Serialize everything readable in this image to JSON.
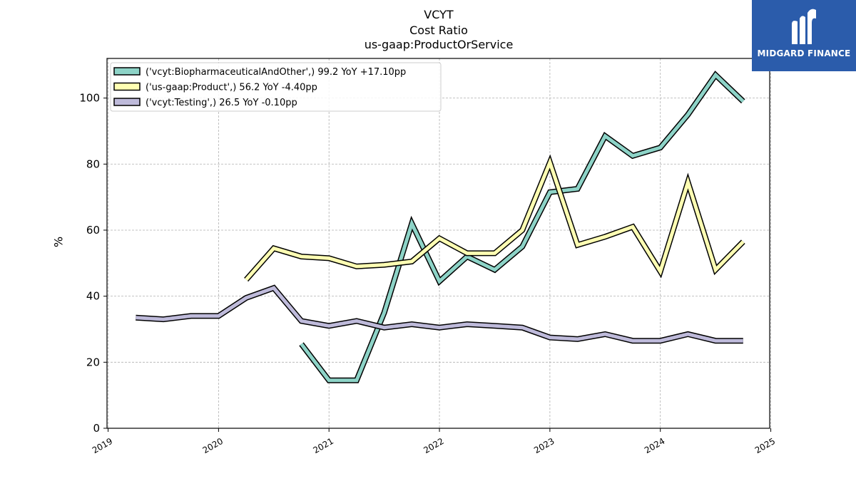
{
  "titles": {
    "line1": "VCYT",
    "line2": "Cost Ratio",
    "line3": "us-gaap:ProductOrService"
  },
  "logo": {
    "text": "MIDGARD FINANCE",
    "background": "#2b5cab"
  },
  "chart_data": {
    "type": "line",
    "title": "VCYT\nCost Ratio\nus-gaap:ProductOrService",
    "xlabel": "",
    "ylabel": "%",
    "xlim": [
      2018.99,
      2024.99
    ],
    "ylim": [
      0,
      112
    ],
    "x_ticks": [
      "2019",
      "2020",
      "2021",
      "2022",
      "2023",
      "2024",
      "2025"
    ],
    "y_ticks": [
      0,
      20,
      40,
      60,
      80,
      100
    ],
    "grid": true,
    "legend_position": "top-left",
    "series": [
      {
        "name": "('vcyt:BiopharmaceuticalAndOther',) 99.2 YoY +17.10pp",
        "color": "#8dd3c7",
        "points": [
          [
            "2020-10",
            25.5
          ],
          [
            "2021-01",
            14.5
          ],
          [
            "2021-04",
            14.5
          ],
          [
            "2021-07",
            35
          ],
          [
            "2021-10",
            62
          ],
          [
            "2022-01",
            44.5
          ],
          [
            "2022-04",
            52
          ],
          [
            "2022-07",
            48
          ],
          [
            "2022-10",
            55
          ],
          [
            "2023-01",
            71.5
          ],
          [
            "2023-04",
            72.5
          ],
          [
            "2023-07",
            88.5
          ],
          [
            "2023-10",
            82.5
          ],
          [
            "2024-01",
            85
          ],
          [
            "2024-04",
            95
          ],
          [
            "2024-07",
            107
          ],
          [
            "2024-10",
            99
          ]
        ]
      },
      {
        "name": "('us-gaap:Product',) 56.2 YoY -4.40pp",
        "color": "#ffffb3",
        "points": [
          [
            "2020-04",
            45
          ],
          [
            "2020-07",
            54.5
          ],
          [
            "2020-10",
            52
          ],
          [
            "2021-01",
            51.5
          ],
          [
            "2021-04",
            49
          ],
          [
            "2021-07",
            49.5
          ],
          [
            "2021-10",
            50.5
          ],
          [
            "2022-01",
            57.5
          ],
          [
            "2022-04",
            53
          ],
          [
            "2022-07",
            53
          ],
          [
            "2022-10",
            60
          ],
          [
            "2023-01",
            80.5
          ],
          [
            "2023-04",
            55.5
          ],
          [
            "2023-07",
            58
          ],
          [
            "2023-10",
            61
          ],
          [
            "2024-01",
            47.5
          ],
          [
            "2024-04",
            74.5
          ],
          [
            "2024-07",
            48
          ],
          [
            "2024-10",
            56.5
          ]
        ]
      },
      {
        "name": "('vcyt:Testing',) 26.5 YoY -0.10pp",
        "color": "#bebada",
        "points": [
          [
            "2019-04",
            33.5
          ],
          [
            "2019-07",
            33
          ],
          [
            "2019-10",
            34
          ],
          [
            "2020-01",
            34
          ],
          [
            "2020-04",
            39.5
          ],
          [
            "2020-07",
            42.5
          ],
          [
            "2020-10",
            32.5
          ],
          [
            "2021-01",
            31
          ],
          [
            "2021-04",
            32.5
          ],
          [
            "2021-07",
            30.5
          ],
          [
            "2021-10",
            31.5
          ],
          [
            "2022-01",
            30.5
          ],
          [
            "2022-04",
            31.5
          ],
          [
            "2022-07",
            31
          ],
          [
            "2022-10",
            30.5
          ],
          [
            "2023-01",
            27.5
          ],
          [
            "2023-04",
            27
          ],
          [
            "2023-07",
            28.5
          ],
          [
            "2023-10",
            26.5
          ],
          [
            "2024-01",
            26.5
          ],
          [
            "2024-04",
            28.5
          ],
          [
            "2024-07",
            26.5
          ],
          [
            "2024-10",
            26.5
          ]
        ]
      }
    ]
  }
}
